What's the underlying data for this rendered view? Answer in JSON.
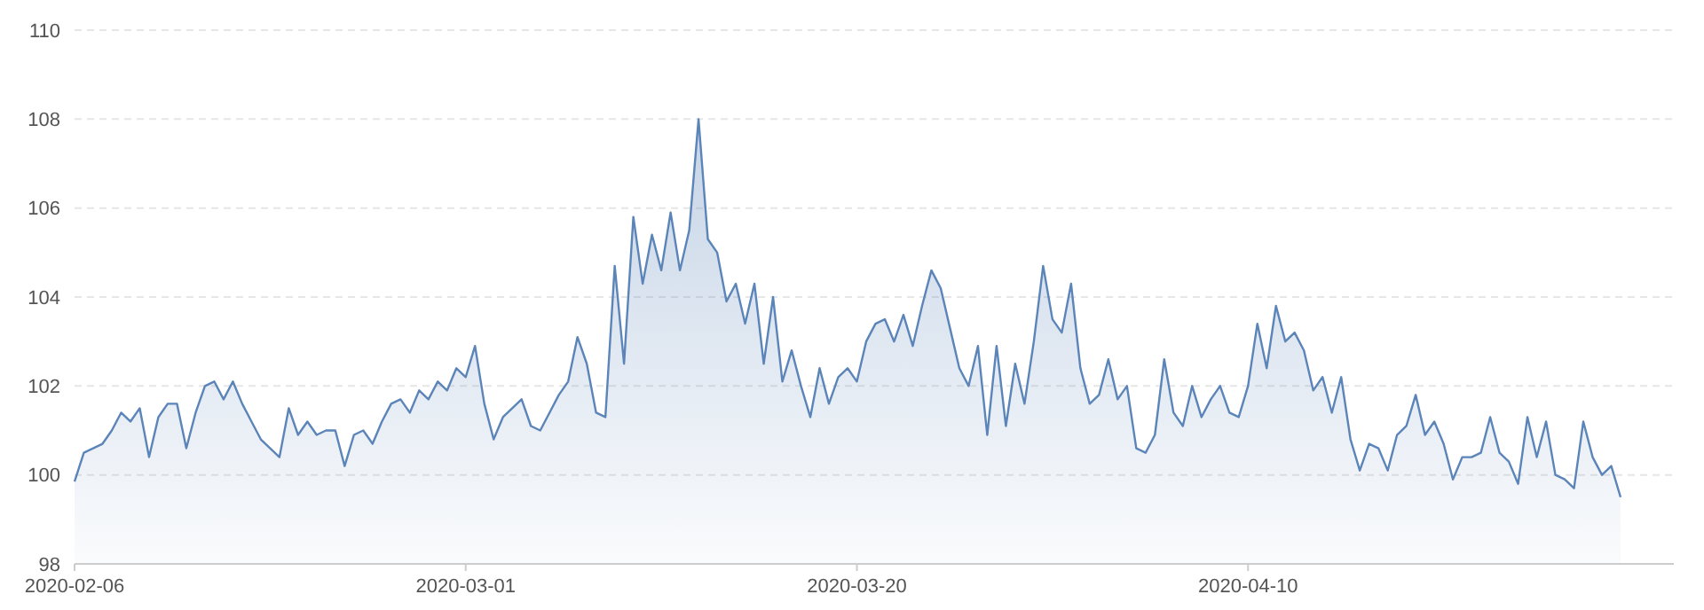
{
  "chart_data": {
    "type": "area",
    "categories": [
      "2020-02-06",
      null,
      null,
      null,
      null,
      null,
      null,
      null,
      null,
      null,
      null,
      null,
      null,
      null,
      null,
      null,
      null,
      null,
      null,
      null,
      null,
      null,
      null,
      null,
      null,
      null,
      null,
      null,
      null,
      null,
      null,
      null,
      null,
      null,
      null,
      null,
      null,
      null,
      null,
      null,
      null,
      null,
      "2020-03-01",
      null,
      null,
      null,
      null,
      null,
      null,
      null,
      null,
      null,
      null,
      null,
      null,
      null,
      null,
      null,
      null,
      null,
      null,
      null,
      null,
      null,
      null,
      null,
      null,
      null,
      null,
      null,
      null,
      null,
      null,
      null,
      null,
      null,
      null,
      null,
      null,
      null,
      null,
      null,
      null,
      null,
      "2020-03-20",
      null,
      null,
      null,
      null,
      null,
      null,
      null,
      null,
      null,
      null,
      null,
      null,
      null,
      null,
      null,
      null,
      null,
      null,
      null,
      null,
      null,
      null,
      null,
      null,
      null,
      null,
      null,
      null,
      null,
      null,
      null,
      null,
      null,
      null,
      null,
      null,
      null,
      null,
      null,
      null,
      null,
      "2020-04-10",
      null,
      null,
      null,
      null,
      null,
      null,
      null,
      null,
      null,
      null,
      null,
      null,
      null,
      null,
      null,
      null,
      null,
      null,
      null,
      null,
      null,
      null,
      null,
      null,
      null,
      null,
      null,
      null,
      null,
      null,
      null,
      null,
      null,
      null,
      null,
      null,
      null,
      null,
      null,
      null
    ],
    "series": [
      {
        "color": "#5b84b8",
        "values": [
          99.85,
          100.5,
          100.6,
          100.7,
          101,
          101.4,
          101.2,
          101.5,
          100.4,
          101.3,
          101.6,
          101.6,
          100.6,
          101.4,
          102,
          102.1,
          101.7,
          102.1,
          101.6,
          101.2,
          100.8,
          100.6,
          100.4,
          101.5,
          100.9,
          101.2,
          100.9,
          101,
          101,
          100.2,
          100.9,
          101,
          100.7,
          101.2,
          101.6,
          101.7,
          101.4,
          101.9,
          101.7,
          102.1,
          101.9,
          102.4,
          102.2,
          102.9,
          101.6,
          100.8,
          101.3,
          101.5,
          101.7,
          101.1,
          101,
          101.4,
          101.8,
          102.1,
          103.1,
          102.5,
          101.4,
          101.3,
          104.7,
          102.5,
          105.8,
          104.3,
          105.4,
          104.6,
          105.9,
          104.6,
          105.5,
          108,
          105.3,
          105,
          103.9,
          104.3,
          103.4,
          104.3,
          102.5,
          104,
          102.1,
          102.8,
          102,
          101.3,
          102.4,
          101.6,
          102.2,
          102.4,
          102.1,
          103,
          103.4,
          103.5,
          103,
          103.6,
          102.9,
          103.8,
          104.6,
          104.2,
          103.3,
          102.4,
          102,
          102.9,
          100.9,
          102.9,
          101.1,
          102.5,
          101.6,
          103,
          104.7,
          103.5,
          103.2,
          104.3,
          102.4,
          101.6,
          101.8,
          102.6,
          101.7,
          102,
          100.6,
          100.5,
          100.9,
          102.6,
          101.4,
          101.1,
          102,
          101.3,
          101.7,
          102,
          101.4,
          101.3,
          102,
          103.4,
          102.4,
          103.8,
          103,
          103.2,
          102.8,
          101.9,
          102.2,
          101.4,
          102.2,
          100.8,
          100.1,
          100.7,
          100.6,
          100.1,
          100.9,
          101.1,
          101.8,
          100.9,
          101.2,
          100.7,
          99.9,
          100.4,
          100.4,
          100.5,
          101.3,
          100.5,
          100.3,
          99.8,
          101.3,
          100.4,
          101.2,
          100,
          99.9,
          99.7,
          101.2,
          100.4,
          100,
          100.2,
          99.5
        ]
      }
    ],
    "ylim": [
      98,
      110
    ],
    "yticks": [
      98,
      100,
      102,
      104,
      106,
      108,
      110
    ],
    "grid": "y"
  }
}
